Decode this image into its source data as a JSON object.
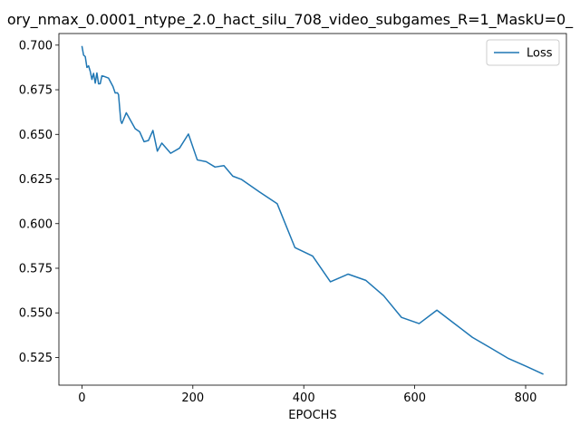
{
  "chart_data": {
    "type": "line",
    "title": "ory_nmax_0.0001_ntype_2.0_hact_silu_708_video_subgames_R=1_MaskU=0_",
    "xlabel": "EPOCHS",
    "ylabel": "",
    "xlim": [
      -41.5,
      873.5
    ],
    "ylim": [
      0.5095,
      0.7065
    ],
    "xticks": [
      0,
      200,
      400,
      600,
      800
    ],
    "yticks": [
      0.525,
      0.55,
      0.575,
      0.6,
      0.625,
      0.65,
      0.675,
      0.7
    ],
    "ytick_labels": [
      "0.525",
      "0.550",
      "0.575",
      "0.600",
      "0.625",
      "0.650",
      "0.675",
      "0.700"
    ],
    "grid": false,
    "legend_position": "top-right",
    "colors": {
      "series": "#1f77b4",
      "frame": "#000000",
      "legend_border": "#cccccc"
    },
    "series": [
      {
        "name": "Loss",
        "x": [
          0,
          3,
          6,
          9,
          12,
          15,
          18,
          21,
          24,
          27,
          30,
          33,
          36,
          40,
          48,
          56,
          60,
          64,
          66,
          70,
          72,
          80,
          96,
          104,
          112,
          120,
          128,
          136,
          144,
          160,
          176,
          192,
          208,
          224,
          240,
          256,
          272,
          288,
          320,
          352,
          384,
          416,
          448,
          480,
          512,
          544,
          576,
          608,
          640,
          672,
          704,
          736,
          768,
          800,
          832
        ],
        "values": [
          0.6995,
          0.6944,
          0.6936,
          0.6875,
          0.6884,
          0.6853,
          0.6808,
          0.6842,
          0.6787,
          0.6844,
          0.6783,
          0.6784,
          0.6828,
          0.6825,
          0.6815,
          0.6768,
          0.6732,
          0.6733,
          0.6723,
          0.6577,
          0.6561,
          0.6621,
          0.6532,
          0.6515,
          0.6459,
          0.6466,
          0.6522,
          0.6406,
          0.6451,
          0.6394,
          0.6423,
          0.6502,
          0.6357,
          0.6347,
          0.6317,
          0.6325,
          0.6266,
          0.6247,
          0.6178,
          0.6112,
          0.5866,
          0.5818,
          0.5674,
          0.5717,
          0.5682,
          0.5596,
          0.5475,
          0.544,
          0.5515,
          0.5439,
          0.5363,
          0.5305,
          0.5246,
          0.5202,
          0.5156
        ]
      }
    ]
  }
}
